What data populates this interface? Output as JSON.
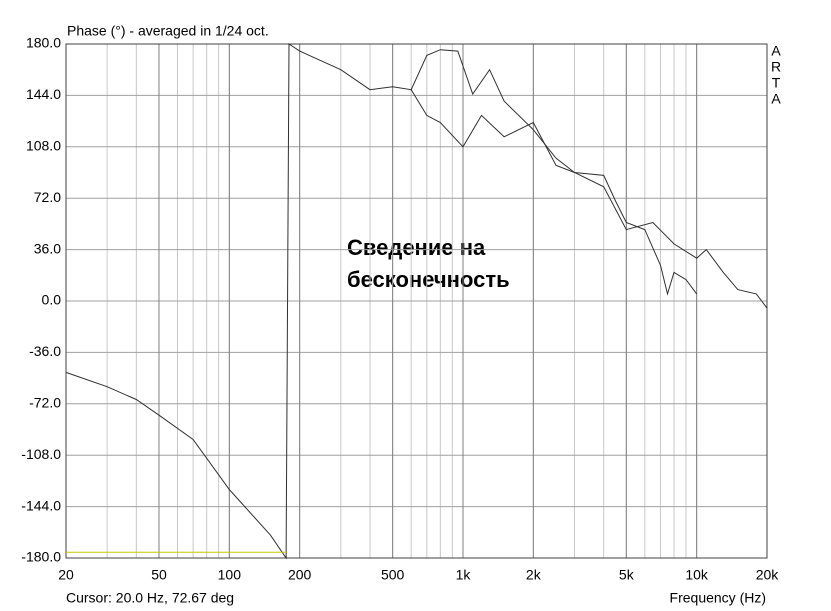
{
  "chart_data": {
    "type": "line",
    "title": "Phase (°) - averaged in 1/24 oct.",
    "brand": "ARTA",
    "annotation": [
      "Сведение на",
      "бесконечность"
    ],
    "cursor_text": "Cursor: 20.0 Hz, 72.67 deg",
    "x_label": "Frequency (Hz)",
    "log_x": true,
    "grid": true,
    "xlim": [
      20,
      20000
    ],
    "ylim": [
      -180,
      180
    ],
    "xticks": [
      20,
      50,
      100,
      200,
      500,
      {
        "value": 1000,
        "label": "1k"
      },
      {
        "value": 2000,
        "label": "2k"
      },
      {
        "value": 5000,
        "label": "5k"
      },
      {
        "value": 10000,
        "label": "10k"
      },
      {
        "value": 20000,
        "label": "20k"
      }
    ],
    "yticks": [
      {
        "value": 180,
        "label": "180.0"
      },
      {
        "value": 144,
        "label": "144.0"
      },
      {
        "value": 108,
        "label": "108.0"
      },
      {
        "value": 72,
        "label": "72.0"
      },
      {
        "value": 36,
        "label": "36.0"
      },
      {
        "value": 0,
        "label": "0.0"
      },
      {
        "value": -36,
        "label": "-36.0"
      },
      {
        "value": -72,
        "label": "-72.0"
      },
      {
        "value": -108,
        "label": "-108.0"
      },
      {
        "value": -144,
        "label": "-144.0"
      },
      {
        "value": -180,
        "label": "-180.0"
      }
    ],
    "series": [
      {
        "color": "#303030",
        "x": [
          20,
          30,
          40,
          50,
          70,
          100,
          150,
          175,
          180,
          200,
          300,
          400,
          500,
          600,
          700,
          800,
          950,
          1100,
          1300,
          1500,
          2000,
          2500,
          3000,
          4000,
          5000,
          6500,
          8000,
          10000,
          11000,
          13000,
          15000,
          18000,
          20000
        ],
        "values": [
          -50,
          -60,
          -69,
          -80,
          -97,
          -132,
          -164,
          -180,
          180,
          175,
          162,
          148,
          150,
          148,
          172,
          176,
          175,
          145,
          162,
          140,
          120,
          100,
          90,
          80,
          50,
          55,
          40,
          30,
          36,
          20,
          8,
          5,
          -5
        ]
      },
      {
        "color": "#303030",
        "x": [
          600,
          700,
          800,
          1000,
          1200,
          1500,
          2000,
          2500,
          3000,
          4000,
          4500,
          5000,
          6000,
          7000,
          7500,
          8000,
          9000,
          10000
        ],
        "values": [
          148,
          130,
          125,
          108,
          130,
          115,
          125,
          95,
          90,
          88,
          70,
          55,
          50,
          25,
          5,
          20,
          15,
          5
        ]
      },
      {
        "color": "#c8c800",
        "x": [
          20,
          175
        ],
        "values": [
          -176,
          -176
        ]
      }
    ]
  }
}
